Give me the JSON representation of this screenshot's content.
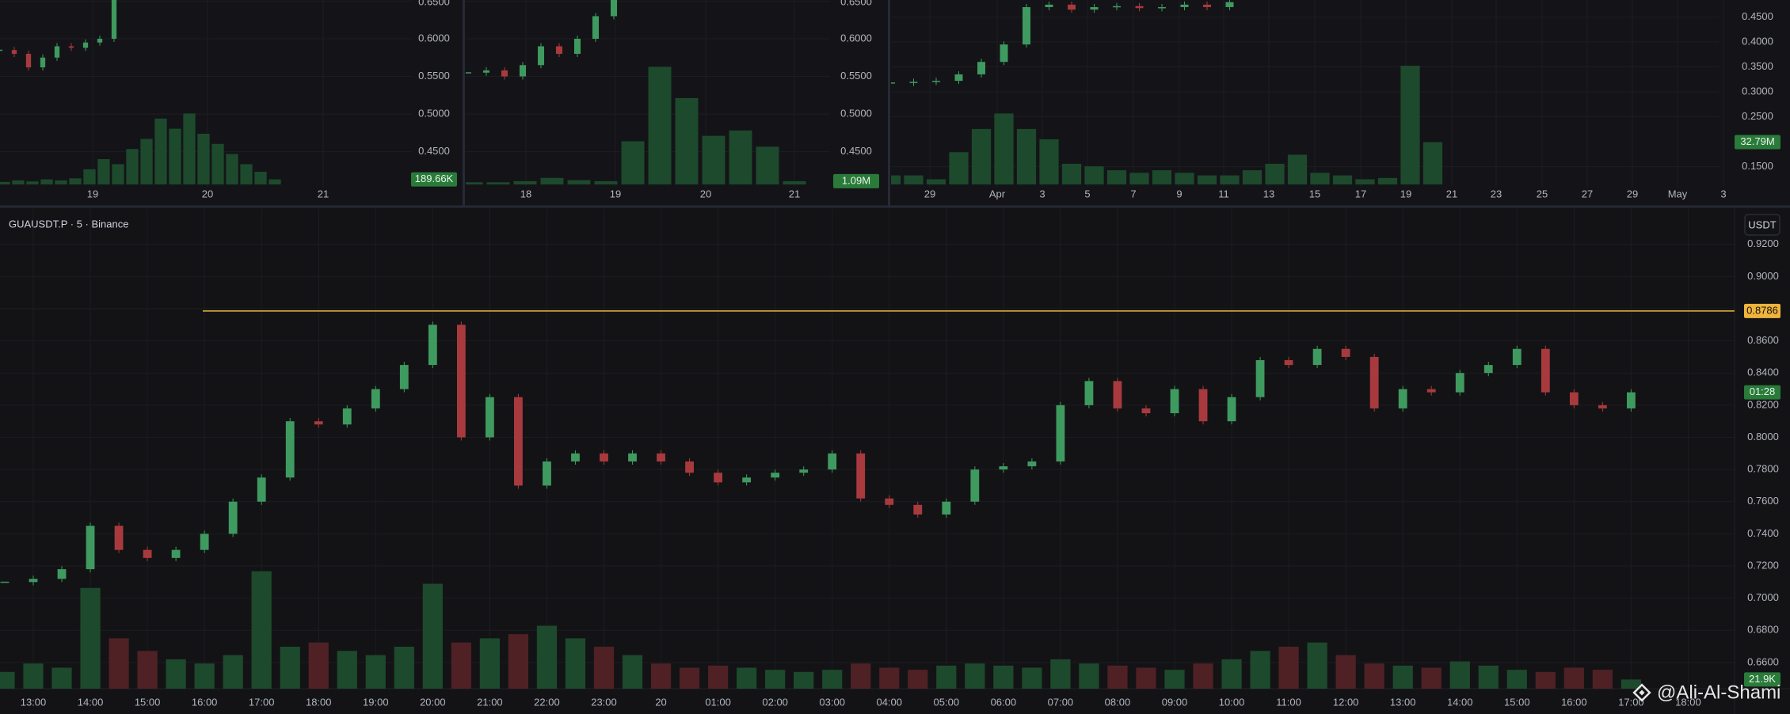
{
  "panels": [
    {
      "price_ticks": [
        {
          "value": 0.65,
          "label": "0.6500"
        },
        {
          "value": 0.6,
          "label": "0.6000"
        },
        {
          "value": 0.55,
          "label": "0.5500"
        },
        {
          "value": 0.5,
          "label": "0.5000"
        },
        {
          "value": 0.45,
          "label": "0.4500"
        }
      ],
      "ylim": [
        0.4065,
        0.6515
      ],
      "times": [
        "19",
        "20",
        "21"
      ],
      "volume_label": "189.66K",
      "volume_lim": [
        0,
        250
      ],
      "price_values": [
        0.585,
        0.58,
        0.562,
        0.575,
        0.59,
        0.588,
        0.595,
        0.6,
        0.66,
        0.7
      ],
      "volume_values": [
        5,
        8,
        6,
        10,
        8,
        12,
        30,
        50,
        40,
        70,
        90,
        130,
        110,
        140,
        100,
        80,
        60,
        40,
        25,
        10
      ]
    },
    {
      "price_ticks": [
        {
          "value": 0.65,
          "label": "0.6500"
        },
        {
          "value": 0.6,
          "label": "0.6000"
        },
        {
          "value": 0.55,
          "label": "0.5500"
        },
        {
          "value": 0.5,
          "label": "0.5000"
        },
        {
          "value": 0.45,
          "label": "0.4500"
        }
      ],
      "ylim": [
        0.4065,
        0.6515
      ],
      "times": [
        "18",
        "19",
        "20",
        "21"
      ],
      "volume_label": "1.09M",
      "volume_lim": [
        0,
        1.1
      ],
      "price_values": [
        0.555,
        0.558,
        0.55,
        0.565,
        0.59,
        0.58,
        0.6,
        0.63,
        0.66
      ],
      "volume_values": [
        0.02,
        0.02,
        0.03,
        0.06,
        0.04,
        0.03,
        0.4,
        1.09,
        0.8,
        0.45,
        0.5,
        0.35,
        0.03
      ]
    },
    {
      "price_ticks": [
        {
          "value": 0.45,
          "label": "0.4500"
        },
        {
          "value": 0.4,
          "label": "0.4000"
        },
        {
          "value": 0.35,
          "label": "0.3500"
        },
        {
          "value": 0.3,
          "label": "0.3000"
        },
        {
          "value": 0.25,
          "label": "0.2500"
        },
        {
          "value": 0.15,
          "label": "0.1500"
        }
      ],
      "ylim": [
        0.114,
        0.4843
      ],
      "times": [
        "29",
        "Apr",
        "3",
        "5",
        "7",
        "9",
        "11",
        "13",
        "15",
        "17",
        "19",
        "21",
        "23",
        "25",
        "27",
        "29",
        "May",
        "3"
      ],
      "volume_label": "32.79M",
      "volume_lim": [
        0,
        100
      ],
      "price_values": [
        0.318,
        0.32,
        0.322,
        0.335,
        0.36,
        0.395,
        0.47,
        0.475,
        0.465,
        0.47,
        0.472,
        0.468,
        0.47,
        0.475,
        0.47,
        0.48
      ],
      "volume_values": [
        7,
        7,
        4,
        25,
        43,
        55,
        43,
        35,
        16,
        14,
        11,
        9,
        11,
        9,
        7,
        7,
        11,
        16,
        23,
        9,
        7,
        4,
        5,
        92,
        32.79
      ]
    }
  ],
  "main": {
    "symbol": "GUAUSDT.P · 5 · Binance",
    "currency": "USDT",
    "ylim": [
      0.6437,
      0.943
    ],
    "price_ticks": [
      {
        "value": 0.92,
        "label": "0.9200"
      },
      {
        "value": 0.9,
        "label": "0.9000"
      },
      {
        "value": 0.88,
        "label": "0.8800"
      },
      {
        "value": 0.86,
        "label": "0.8600"
      },
      {
        "value": 0.84,
        "label": "0.8400"
      },
      {
        "value": 0.82,
        "label": "0.8200"
      },
      {
        "value": 0.8,
        "label": "0.8000"
      },
      {
        "value": 0.78,
        "label": "0.7800"
      },
      {
        "value": 0.76,
        "label": "0.7600"
      },
      {
        "value": 0.74,
        "label": "0.7400"
      },
      {
        "value": 0.72,
        "label": "0.7200"
      },
      {
        "value": 0.7,
        "label": "0.7000"
      },
      {
        "value": 0.68,
        "label": "0.6800"
      },
      {
        "value": 0.66,
        "label": "0.6600"
      }
    ],
    "times": [
      "13:00",
      "14:00",
      "15:00",
      "16:00",
      "17:00",
      "18:00",
      "19:00",
      "20:00",
      "21:00",
      "22:00",
      "23:00",
      "20",
      "01:00",
      "02:00",
      "03:00",
      "04:00",
      "05:00",
      "06:00",
      "07:00",
      "08:00",
      "09:00",
      "10:00",
      "11:00",
      "12:00",
      "13:00",
      "14:00",
      "15:00",
      "16:00",
      "17:00",
      "18:00"
    ],
    "level": {
      "value": 0.8786,
      "label": "0.8786"
    },
    "countdown": "01:28",
    "volume_label": "21.9K",
    "volume_lim": [
      0,
      300
    ],
    "price_values": [
      0.71,
      0.712,
      0.718,
      0.745,
      0.73,
      0.725,
      0.73,
      0.74,
      0.76,
      0.775,
      0.81,
      0.808,
      0.818,
      0.83,
      0.845,
      0.87,
      0.8,
      0.825,
      0.77,
      0.785,
      0.79,
      0.785,
      0.79,
      0.785,
      0.778,
      0.772,
      0.775,
      0.778,
      0.78,
      0.79,
      0.762,
      0.758,
      0.752,
      0.76,
      0.78,
      0.782,
      0.785,
      0.82,
      0.835,
      0.818,
      0.815,
      0.83,
      0.81,
      0.825,
      0.848,
      0.845,
      0.855,
      0.85,
      0.818,
      0.83,
      0.828,
      0.84,
      0.845,
      0.855,
      0.828,
      0.82,
      0.818,
      0.828
    ],
    "volume_values": [
      40,
      60,
      50,
      240,
      120,
      90,
      70,
      60,
      80,
      280,
      100,
      110,
      90,
      80,
      100,
      250,
      110,
      120,
      130,
      150,
      120,
      100,
      80,
      60,
      50,
      55,
      50,
      45,
      40,
      45,
      60,
      50,
      45,
      55,
      60,
      55,
      50,
      70,
      60,
      55,
      50,
      45,
      60,
      70,
      90,
      100,
      110,
      80,
      60,
      55,
      50,
      65,
      55,
      45,
      40,
      50,
      45,
      21.9
    ]
  },
  "watermark": "@Ali-Al-Shami"
}
